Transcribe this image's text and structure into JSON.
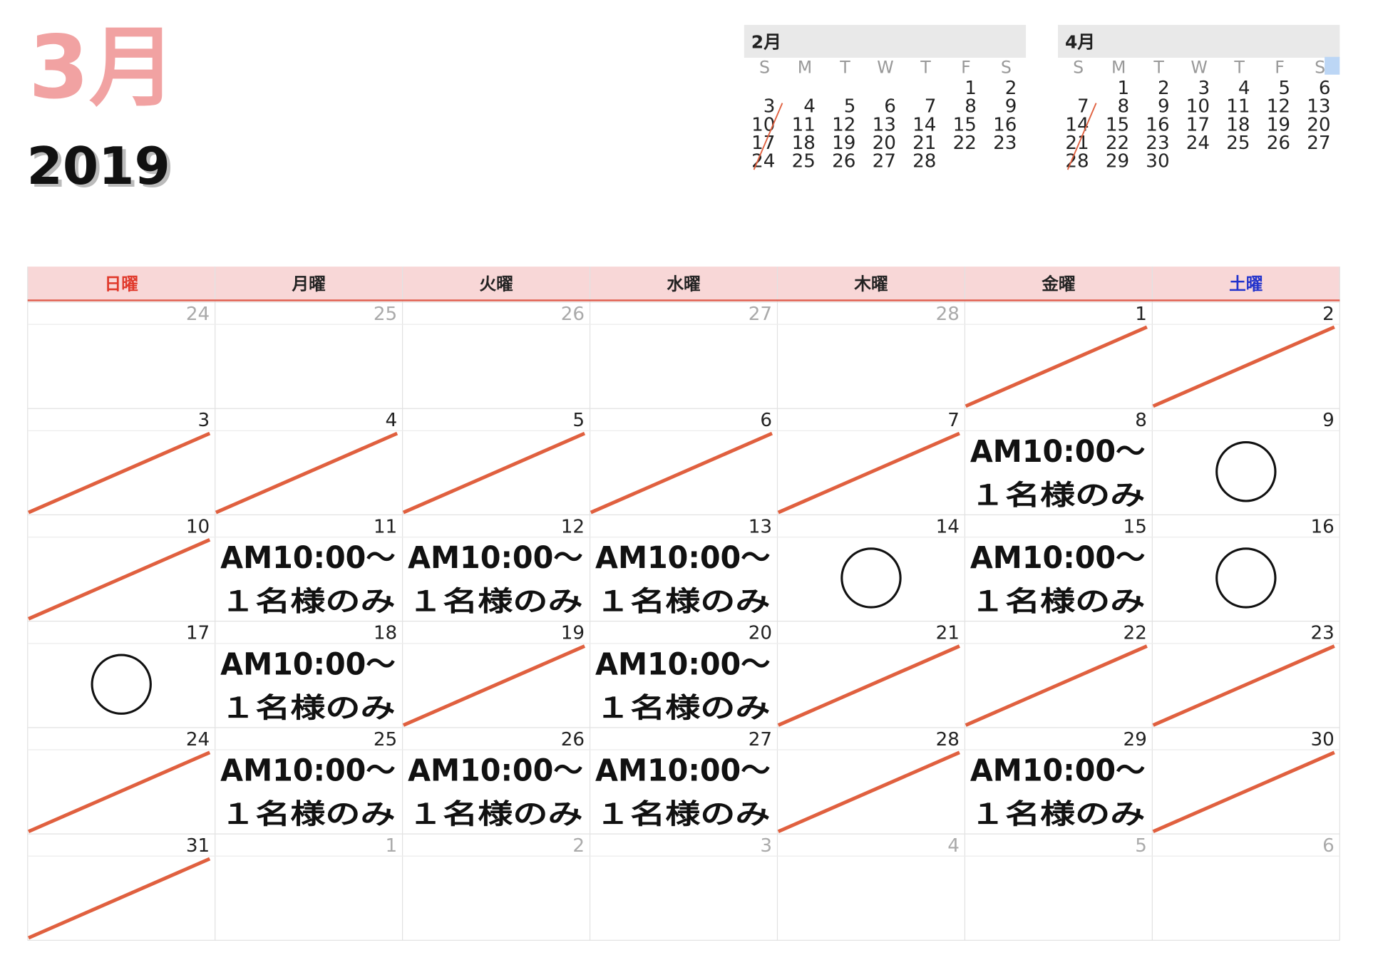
{
  "header": {
    "month": "3月",
    "year": "2019"
  },
  "mini_calendars": [
    {
      "title": "2月",
      "weekdays": [
        "S",
        "M",
        "T",
        "W",
        "T",
        "F",
        "S"
      ],
      "weeks": [
        [
          null,
          null,
          null,
          null,
          null,
          "1",
          "2"
        ],
        [
          "3",
          "4",
          "5",
          "6",
          "7",
          "8",
          "9"
        ],
        [
          "10",
          "11",
          "12",
          "13",
          "14",
          "15",
          "16"
        ],
        [
          "17",
          "18",
          "19",
          "20",
          "21",
          "22",
          "23"
        ],
        [
          "24",
          "25",
          "26",
          "27",
          "28",
          null,
          null
        ]
      ]
    },
    {
      "title": "4月",
      "weekdays": [
        "S",
        "M",
        "T",
        "W",
        "T",
        "F",
        "S"
      ],
      "weeks": [
        [
          null,
          "1",
          "2",
          "3",
          "4",
          "5",
          "6"
        ],
        [
          "7",
          "8",
          "9",
          "10",
          "11",
          "12",
          "13"
        ],
        [
          "14",
          "15",
          "16",
          "17",
          "18",
          "19",
          "20"
        ],
        [
          "21",
          "22",
          "23",
          "24",
          "25",
          "26",
          "27"
        ],
        [
          "28",
          "29",
          "30",
          null,
          null,
          null,
          null
        ]
      ]
    }
  ],
  "calendar": {
    "weekdays": [
      {
        "label": "日曜",
        "color": "#e0392b"
      },
      {
        "label": "月曜",
        "color": "#222"
      },
      {
        "label": "火曜",
        "color": "#222"
      },
      {
        "label": "水曜",
        "color": "#222"
      },
      {
        "label": "木曜",
        "color": "#222"
      },
      {
        "label": "金曜",
        "color": "#222"
      },
      {
        "label": "土曜",
        "color": "#2233cc"
      }
    ],
    "weeks": [
      [
        {
          "day": "24",
          "other": true
        },
        {
          "day": "25",
          "other": true
        },
        {
          "day": "26",
          "other": true
        },
        {
          "day": "27",
          "other": true
        },
        {
          "day": "28",
          "other": true
        },
        {
          "day": "1",
          "mark": "slash"
        },
        {
          "day": "2",
          "mark": "slash"
        }
      ],
      [
        {
          "day": "3",
          "mark": "slash"
        },
        {
          "day": "4",
          "mark": "slash"
        },
        {
          "day": "5",
          "mark": "slash"
        },
        {
          "day": "6",
          "mark": "slash"
        },
        {
          "day": "7",
          "mark": "slash"
        },
        {
          "day": "8",
          "lines": [
            "AM10:00〜",
            "１名様のみ"
          ]
        },
        {
          "day": "9",
          "mark": "circle"
        }
      ],
      [
        {
          "day": "10",
          "mark": "slash"
        },
        {
          "day": "11",
          "lines": [
            "AM10:00〜",
            "１名様のみ"
          ]
        },
        {
          "day": "12",
          "lines": [
            "AM10:00〜",
            "１名様のみ"
          ]
        },
        {
          "day": "13",
          "lines": [
            "AM10:00〜",
            "１名様のみ"
          ]
        },
        {
          "day": "14",
          "mark": "circle"
        },
        {
          "day": "15",
          "lines": [
            "AM10:00〜",
            "１名様のみ"
          ]
        },
        {
          "day": "16",
          "mark": "circle"
        }
      ],
      [
        {
          "day": "17",
          "mark": "circle"
        },
        {
          "day": "18",
          "lines": [
            "AM10:00〜",
            "１名様のみ"
          ]
        },
        {
          "day": "19",
          "mark": "slash"
        },
        {
          "day": "20",
          "lines": [
            "AM10:00〜",
            "１名様のみ"
          ]
        },
        {
          "day": "21",
          "mark": "slash"
        },
        {
          "day": "22",
          "mark": "slash"
        },
        {
          "day": "23",
          "mark": "slash"
        }
      ],
      [
        {
          "day": "24",
          "mark": "slash"
        },
        {
          "day": "25",
          "lines": [
            "AM10:00〜",
            "１名様のみ"
          ]
        },
        {
          "day": "26",
          "lines": [
            "AM10:00〜",
            "１名様のみ"
          ]
        },
        {
          "day": "27",
          "lines": [
            "AM10:00〜",
            "１名様のみ"
          ]
        },
        {
          "day": "28",
          "mark": "slash"
        },
        {
          "day": "29",
          "lines": [
            "AM10:00〜",
            "１名様のみ"
          ]
        },
        {
          "day": "30",
          "mark": "slash"
        }
      ],
      [
        {
          "day": "31",
          "mark": "slash"
        },
        {
          "day": "1",
          "other": true
        },
        {
          "day": "2",
          "other": true
        },
        {
          "day": "3",
          "other": true
        },
        {
          "day": "4",
          "other": true
        },
        {
          "day": "5",
          "other": true
        },
        {
          "day": "6",
          "other": true
        }
      ]
    ]
  }
}
